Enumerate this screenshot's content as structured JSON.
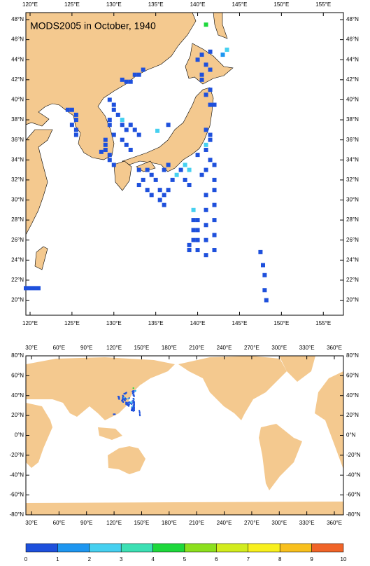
{
  "maps": [
    {
      "title": "MODS2005 in October, 1940",
      "lonlim": [
        119.5,
        157.4
      ],
      "latlim": [
        18.5,
        48.7
      ],
      "lonticks": [
        {
          "value": 120,
          "label": "120°E"
        },
        {
          "value": 125,
          "label": "125°E"
        },
        {
          "value": 130,
          "label": "130°E"
        },
        {
          "value": 135,
          "label": "135°E"
        },
        {
          "value": 140,
          "label": "140°E"
        },
        {
          "value": 145,
          "label": "145°E"
        },
        {
          "value": 150,
          "label": "150°E"
        },
        {
          "value": 155,
          "label": "155°E"
        }
      ],
      "latticks": [
        {
          "value": 20,
          "label": "20°N"
        },
        {
          "value": 22,
          "label": "22°N"
        },
        {
          "value": 24,
          "label": "24°N"
        },
        {
          "value": 26,
          "label": "26°N"
        },
        {
          "value": 28,
          "label": "28°N"
        },
        {
          "value": 30,
          "label": "30°N"
        },
        {
          "value": 32,
          "label": "32°N"
        },
        {
          "value": 34,
          "label": "34°N"
        },
        {
          "value": 36,
          "label": "36°N"
        },
        {
          "value": 38,
          "label": "38°N"
        },
        {
          "value": 40,
          "label": "40°N"
        },
        {
          "value": 42,
          "label": "42°N"
        },
        {
          "value": 44,
          "label": "44°N"
        },
        {
          "value": 46,
          "label": "46°N"
        },
        {
          "value": 48,
          "label": "48°N"
        }
      ]
    },
    {
      "lonlim": [
        23.9,
        369.9
      ],
      "latlim": [
        -80,
        80
      ],
      "lonticks": [
        {
          "value": 30,
          "label": "30°E"
        },
        {
          "value": 60,
          "label": "60°E"
        },
        {
          "value": 90,
          "label": "90°E"
        },
        {
          "value": 120,
          "label": "120°E"
        },
        {
          "value": 150,
          "label": "150°E"
        },
        {
          "value": 180,
          "label": "180°E"
        },
        {
          "value": 210,
          "label": "210°E"
        },
        {
          "value": 240,
          "label": "240°E"
        },
        {
          "value": 270,
          "label": "270°E"
        },
        {
          "value": 300,
          "label": "300°E"
        },
        {
          "value": 330,
          "label": "330°E"
        },
        {
          "value": 360,
          "label": "360°E"
        }
      ],
      "latticks": [
        {
          "value": -80,
          "label": "-80°N"
        },
        {
          "value": -60,
          "label": "-60°N"
        },
        {
          "value": -40,
          "label": "-40°N"
        },
        {
          "value": -20,
          "label": "-20°N"
        },
        {
          "value": 0,
          "label": "0°N"
        },
        {
          "value": 20,
          "label": "20°N"
        },
        {
          "value": 40,
          "label": "40°N"
        },
        {
          "value": 60,
          "label": "60°N"
        },
        {
          "value": 80,
          "label": "80°N"
        }
      ]
    }
  ],
  "observations": [
    [
      124.5,
      39,
      0.5
    ],
    [
      125,
      39,
      0.5
    ],
    [
      125.5,
      38.5,
      0.5
    ],
    [
      125.5,
      38,
      0.5
    ],
    [
      125,
      37.5,
      0.5
    ],
    [
      125.5,
      37,
      0.5
    ],
    [
      125.5,
      36.5,
      0.5
    ],
    [
      129.5,
      40,
      0.5
    ],
    [
      130,
      39.5,
      0.5
    ],
    [
      130,
      39,
      0.5
    ],
    [
      130.5,
      38.5,
      0.5
    ],
    [
      129.5,
      38,
      0.5
    ],
    [
      129.5,
      37.5,
      0.5
    ],
    [
      130,
      36.5,
      0.5
    ],
    [
      129,
      36,
      0.5
    ],
    [
      129,
      35.5,
      0.5
    ],
    [
      129,
      35,
      0.5
    ],
    [
      129.5,
      34.5,
      0.5
    ],
    [
      129.5,
      34,
      0.5
    ],
    [
      130,
      33.5,
      0.5
    ],
    [
      128.5,
      34.8,
      0.5
    ],
    [
      131,
      42,
      0.5
    ],
    [
      131.5,
      41.8,
      0.5
    ],
    [
      132,
      41.8,
      0.5
    ],
    [
      132.5,
      42.5,
      0.5
    ],
    [
      133,
      42.5,
      0.5
    ],
    [
      133.5,
      43,
      0.5
    ],
    [
      131,
      37.5,
      0.5
    ],
    [
      131.5,
      37,
      0.5
    ],
    [
      132,
      37.5,
      0.5
    ],
    [
      132.5,
      37,
      0.5
    ],
    [
      133,
      36.5,
      0.5
    ],
    [
      131,
      36,
      0.5
    ],
    [
      131.5,
      35.5,
      0.5
    ],
    [
      132,
      35,
      0.5
    ],
    [
      131,
      38,
      2.5
    ],
    [
      135.2,
      36.9,
      2.5
    ],
    [
      136.5,
      37.5,
      0.5
    ],
    [
      140.5,
      44.5,
      0.5
    ],
    [
      140,
      44,
      0.5
    ],
    [
      141,
      43.5,
      0.5
    ],
    [
      141.5,
      43,
      0.5
    ],
    [
      140.5,
      42.5,
      0.5
    ],
    [
      140.5,
      42,
      0.5
    ],
    [
      141.5,
      44.8,
      0.5
    ],
    [
      143.5,
      45,
      2.5
    ],
    [
      143,
      44.5,
      1.5
    ],
    [
      141,
      47.5,
      4.5
    ],
    [
      142,
      39.5,
      0.5
    ],
    [
      141.5,
      39.5,
      0.5
    ],
    [
      141,
      40.5,
      0.5
    ],
    [
      141.5,
      41,
      0.5
    ],
    [
      141,
      37,
      0.5
    ],
    [
      141.5,
      36.5,
      0.5
    ],
    [
      141.5,
      36,
      0.5
    ],
    [
      141,
      35.5,
      2.5
    ],
    [
      141,
      35,
      0.5
    ],
    [
      140,
      34.5,
      0.5
    ],
    [
      141.5,
      34,
      0.5
    ],
    [
      142,
      33.5,
      0.5
    ],
    [
      141,
      33,
      0.5
    ],
    [
      140.5,
      32.5,
      0.5
    ],
    [
      142,
      32,
      0.5
    ],
    [
      133,
      33,
      0.5
    ],
    [
      134,
      33,
      0.5
    ],
    [
      134.5,
      32.5,
      0.5
    ],
    [
      135,
      32,
      0.5
    ],
    [
      133.5,
      32,
      0.5
    ],
    [
      133,
      31.5,
      0.5
    ],
    [
      134,
      31,
      0.5
    ],
    [
      134.5,
      30.5,
      0.5
    ],
    [
      135.5,
      30,
      0.5
    ],
    [
      136,
      30.5,
      0.5
    ],
    [
      136.5,
      31,
      0.5
    ],
    [
      137,
      32,
      0.5
    ],
    [
      137.5,
      32.5,
      2.5
    ],
    [
      138,
      33,
      0.5
    ],
    [
      138.5,
      32,
      0.5
    ],
    [
      139,
      31.5,
      0.5
    ],
    [
      136,
      33,
      0.5
    ],
    [
      136.5,
      33.5,
      0.5
    ],
    [
      135.5,
      31,
      0.5
    ],
    [
      136,
      29.5,
      0.5
    ],
    [
      138.5,
      33.5,
      2.5
    ],
    [
      139,
      33,
      2.5
    ],
    [
      140,
      25,
      0.5
    ],
    [
      140,
      26,
      0.5
    ],
    [
      140,
      27,
      0.5
    ],
    [
      140,
      28,
      0.5
    ],
    [
      141,
      24.5,
      0.5
    ],
    [
      141,
      26,
      0.5
    ],
    [
      141,
      27.5,
      0.5
    ],
    [
      141,
      29,
      0.5
    ],
    [
      141,
      30.5,
      0.5
    ],
    [
      142,
      25,
      0.5
    ],
    [
      142,
      26.5,
      0.5
    ],
    [
      142,
      28,
      0.5
    ],
    [
      142,
      29.5,
      0.5
    ],
    [
      142,
      31,
      0.5
    ],
    [
      139,
      25,
      0.5
    ],
    [
      139,
      25.5,
      0.5
    ],
    [
      139.5,
      26,
      0.5
    ],
    [
      139.5,
      27,
      0.5
    ],
    [
      139.5,
      28,
      0.5
    ],
    [
      139.5,
      29,
      2.5
    ],
    [
      147.5,
      24.8,
      0.5
    ],
    [
      147.8,
      23.5,
      0.5
    ],
    [
      148,
      22.5,
      0.5
    ],
    [
      148,
      21,
      0.5
    ],
    [
      148.2,
      20,
      0.5
    ],
    [
      119.5,
      21.2,
      0.5
    ],
    [
      120,
      21.2,
      0.5
    ],
    [
      120.5,
      21.2,
      0.5
    ],
    [
      121,
      21.2,
      0.5
    ]
  ],
  "colorbar": {
    "levels": [
      0,
      1,
      2,
      3,
      4,
      5,
      6,
      7,
      8,
      9,
      10
    ],
    "colors": [
      "#1e50dc",
      "#1e96f0",
      "#46d0f0",
      "#3ce0b4",
      "#1ed83c",
      "#8ce01e",
      "#d2ec1e",
      "#f8f01e",
      "#f8c01e",
      "#f06428"
    ]
  }
}
